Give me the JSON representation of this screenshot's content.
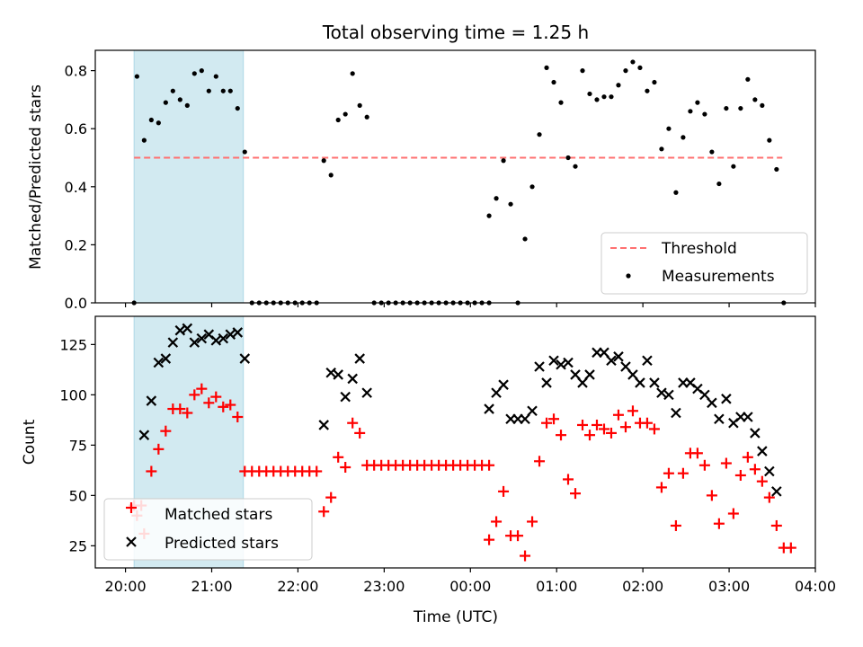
{
  "title": "Total observing time = 1.25 h",
  "colors": {
    "shade": "#add8e6",
    "threshold": "#ff7070",
    "matched": "#ff0000",
    "predicted": "#000000"
  },
  "chart_data": [
    {
      "type": "scatter",
      "panel": "top",
      "title": "Total observing time = 1.25 h",
      "xlabel": "",
      "ylabel": "Matched/Predicted stars",
      "xlim": [
        "19:39",
        "04:00"
      ],
      "ylim": [
        0,
        0.87
      ],
      "yticks": [
        0.0,
        0.2,
        0.4,
        0.6,
        0.8
      ],
      "yticklabels": [
        "0.0",
        "0.2",
        "0.4",
        "0.6",
        "0.8"
      ],
      "shaded_span": [
        "20:06",
        "21:22"
      ],
      "legend": "lower-right",
      "threshold": {
        "name": "Threshold",
        "value": 0.5,
        "x": [
          "20:06",
          "03:37"
        ]
      },
      "series": [
        {
          "name": "Measurements",
          "points": [
            [
              "20:06",
              0
            ],
            [
              "20:08",
              0.78
            ],
            [
              "20:13",
              0.56
            ],
            [
              "20:18",
              0.63
            ],
            [
              "20:23",
              0.62
            ],
            [
              "20:28",
              0.69
            ],
            [
              "20:33",
              0.73
            ],
            [
              "20:38",
              0.7
            ],
            [
              "20:43",
              0.68
            ],
            [
              "20:48",
              0.79
            ],
            [
              "20:53",
              0.8
            ],
            [
              "20:58",
              0.73
            ],
            [
              "21:03",
              0.78
            ],
            [
              "21:08",
              0.73
            ],
            [
              "21:13",
              0.73
            ],
            [
              "21:18",
              0.67
            ],
            [
              "21:23",
              0.52
            ],
            [
              "21:28",
              0
            ],
            [
              "21:33",
              0
            ],
            [
              "21:38",
              0
            ],
            [
              "21:43",
              0
            ],
            [
              "21:48",
              0
            ],
            [
              "21:53",
              0
            ],
            [
              "21:58",
              0
            ],
            [
              "22:03",
              0
            ],
            [
              "22:08",
              0
            ],
            [
              "22:13",
              0
            ],
            [
              "22:18",
              0.49
            ],
            [
              "22:23",
              0.44
            ],
            [
              "22:28",
              0.63
            ],
            [
              "22:33",
              0.65
            ],
            [
              "22:38",
              0.79
            ],
            [
              "22:43",
              0.68
            ],
            [
              "22:48",
              0.64
            ],
            [
              "22:53",
              0
            ],
            [
              "22:58",
              0
            ],
            [
              "23:03",
              0
            ],
            [
              "23:08",
              0
            ],
            [
              "23:13",
              0
            ],
            [
              "23:18",
              0
            ],
            [
              "23:23",
              0
            ],
            [
              "23:28",
              0
            ],
            [
              "23:33",
              0
            ],
            [
              "23:38",
              0
            ],
            [
              "23:43",
              0
            ],
            [
              "23:48",
              0
            ],
            [
              "23:53",
              0
            ],
            [
              "23:58",
              0
            ],
            [
              "00:03",
              0
            ],
            [
              "00:08",
              0
            ],
            [
              "00:13",
              0
            ],
            [
              "00:13",
              0.3
            ],
            [
              "00:18",
              0.36
            ],
            [
              "00:23",
              0.49
            ],
            [
              "00:28",
              0.34
            ],
            [
              "00:33",
              0
            ],
            [
              "00:38",
              0.22
            ],
            [
              "00:43",
              0.4
            ],
            [
              "00:48",
              0.58
            ],
            [
              "00:53",
              0.81
            ],
            [
              "00:58",
              0.76
            ],
            [
              "01:03",
              0.69
            ],
            [
              "01:08",
              0.5
            ],
            [
              "01:13",
              0.47
            ],
            [
              "01:18",
              0.8
            ],
            [
              "01:23",
              0.72
            ],
            [
              "01:28",
              0.7
            ],
            [
              "01:33",
              0.71
            ],
            [
              "01:38",
              0.71
            ],
            [
              "01:43",
              0.75
            ],
            [
              "01:48",
              0.8
            ],
            [
              "01:53",
              0.83
            ],
            [
              "01:58",
              0.81
            ],
            [
              "02:03",
              0.73
            ],
            [
              "02:08",
              0.76
            ],
            [
              "02:13",
              0.53
            ],
            [
              "02:18",
              0.6
            ],
            [
              "02:23",
              0.38
            ],
            [
              "02:28",
              0.57
            ],
            [
              "02:33",
              0.66
            ],
            [
              "02:38",
              0.69
            ],
            [
              "02:43",
              0.65
            ],
            [
              "02:48",
              0.52
            ],
            [
              "02:53",
              0.41
            ],
            [
              "02:58",
              0.67
            ],
            [
              "03:03",
              0.47
            ],
            [
              "03:08",
              0.67
            ],
            [
              "03:13",
              0.77
            ],
            [
              "03:18",
              0.7
            ],
            [
              "03:23",
              0.68
            ],
            [
              "03:28",
              0.56
            ],
            [
              "03:33",
              0.46
            ],
            [
              "03:38",
              0
            ]
          ]
        }
      ]
    },
    {
      "type": "scatter",
      "panel": "bottom",
      "xlabel": "Time (UTC)",
      "ylabel": "Count",
      "xlim": [
        "19:39",
        "04:00"
      ],
      "ylim": [
        14,
        139
      ],
      "yticks": [
        25,
        50,
        75,
        100,
        125
      ],
      "yticklabels": [
        "25",
        "50",
        "75",
        "100",
        "125"
      ],
      "xticks": [
        "20:00",
        "21:00",
        "22:00",
        "23:00",
        "00:00",
        "01:00",
        "02:00",
        "03:00",
        "04:00"
      ],
      "shaded_span": [
        "20:06",
        "21:22"
      ],
      "legend": "lower-left",
      "series": [
        {
          "name": "Matched stars",
          "points": [
            [
              "20:06",
              45
            ],
            [
              "20:08",
              40
            ],
            [
              "20:11",
              45
            ],
            [
              "20:13",
              31
            ],
            [
              "20:18",
              62
            ],
            [
              "20:23",
              73
            ],
            [
              "20:28",
              82
            ],
            [
              "20:33",
              93
            ],
            [
              "20:38",
              93
            ],
            [
              "20:43",
              91
            ],
            [
              "20:48",
              100
            ],
            [
              "20:53",
              103
            ],
            [
              "20:58",
              96
            ],
            [
              "21:03",
              99
            ],
            [
              "21:08",
              94
            ],
            [
              "21:13",
              95
            ],
            [
              "21:18",
              89
            ],
            [
              "21:23",
              62
            ],
            [
              "21:28",
              62
            ],
            [
              "21:33",
              62
            ],
            [
              "21:38",
              62
            ],
            [
              "21:43",
              62
            ],
            [
              "21:48",
              62
            ],
            [
              "21:53",
              62
            ],
            [
              "21:58",
              62
            ],
            [
              "22:03",
              62
            ],
            [
              "22:08",
              62
            ],
            [
              "22:13",
              62
            ],
            [
              "22:18",
              42
            ],
            [
              "22:23",
              49
            ],
            [
              "22:28",
              69
            ],
            [
              "22:33",
              64
            ],
            [
              "22:38",
              86
            ],
            [
              "22:43",
              81
            ],
            [
              "22:48",
              65
            ],
            [
              "22:53",
              65
            ],
            [
              "22:58",
              65
            ],
            [
              "23:03",
              65
            ],
            [
              "23:08",
              65
            ],
            [
              "23:13",
              65
            ],
            [
              "23:18",
              65
            ],
            [
              "23:23",
              65
            ],
            [
              "23:28",
              65
            ],
            [
              "23:33",
              65
            ],
            [
              "23:38",
              65
            ],
            [
              "23:43",
              65
            ],
            [
              "23:48",
              65
            ],
            [
              "23:53",
              65
            ],
            [
              "23:58",
              65
            ],
            [
              "00:03",
              65
            ],
            [
              "00:08",
              65
            ],
            [
              "00:13",
              65
            ],
            [
              "00:13",
              28
            ],
            [
              "00:18",
              37
            ],
            [
              "00:23",
              52
            ],
            [
              "00:28",
              30
            ],
            [
              "00:33",
              30
            ],
            [
              "00:38",
              20
            ],
            [
              "00:43",
              37
            ],
            [
              "00:48",
              67
            ],
            [
              "00:53",
              86
            ],
            [
              "00:58",
              88
            ],
            [
              "01:03",
              80
            ],
            [
              "01:08",
              58
            ],
            [
              "01:13",
              51
            ],
            [
              "01:18",
              85
            ],
            [
              "01:23",
              80
            ],
            [
              "01:28",
              85
            ],
            [
              "01:33",
              83
            ],
            [
              "01:38",
              81
            ],
            [
              "01:43",
              90
            ],
            [
              "01:48",
              84
            ],
            [
              "01:53",
              92
            ],
            [
              "01:58",
              86
            ],
            [
              "02:03",
              86
            ],
            [
              "02:08",
              83
            ],
            [
              "02:13",
              54
            ],
            [
              "02:18",
              61
            ],
            [
              "02:23",
              35
            ],
            [
              "02:28",
              61
            ],
            [
              "02:33",
              71
            ],
            [
              "02:38",
              71
            ],
            [
              "02:43",
              65
            ],
            [
              "02:48",
              50
            ],
            [
              "02:53",
              36
            ],
            [
              "02:58",
              66
            ],
            [
              "03:03",
              41
            ],
            [
              "03:08",
              60
            ],
            [
              "03:13",
              69
            ],
            [
              "03:18",
              63
            ],
            [
              "03:23",
              57
            ],
            [
              "03:28",
              49
            ],
            [
              "03:33",
              35
            ],
            [
              "03:38",
              24
            ],
            [
              "03:43",
              24
            ]
          ]
        },
        {
          "name": "Predicted stars",
          "points": [
            [
              "20:13",
              80
            ],
            [
              "20:18",
              97
            ],
            [
              "20:23",
              116
            ],
            [
              "20:28",
              118
            ],
            [
              "20:33",
              126
            ],
            [
              "20:38",
              132
            ],
            [
              "20:43",
              133
            ],
            [
              "20:48",
              126
            ],
            [
              "20:53",
              128
            ],
            [
              "20:58",
              130
            ],
            [
              "21:03",
              127
            ],
            [
              "21:08",
              128
            ],
            [
              "21:13",
              130
            ],
            [
              "21:18",
              131
            ],
            [
              "21:23",
              118
            ],
            [
              "22:18",
              85
            ],
            [
              "22:23",
              111
            ],
            [
              "22:28",
              110
            ],
            [
              "22:33",
              99
            ],
            [
              "22:38",
              108
            ],
            [
              "22:43",
              118
            ],
            [
              "22:48",
              101
            ],
            [
              "00:13",
              93
            ],
            [
              "00:18",
              101
            ],
            [
              "00:23",
              105
            ],
            [
              "00:28",
              88
            ],
            [
              "00:33",
              88
            ],
            [
              "00:38",
              88
            ],
            [
              "00:43",
              92
            ],
            [
              "00:48",
              114
            ],
            [
              "00:53",
              106
            ],
            [
              "00:58",
              117
            ],
            [
              "01:03",
              115
            ],
            [
              "01:08",
              116
            ],
            [
              "01:13",
              110
            ],
            [
              "01:18",
              106
            ],
            [
              "01:23",
              110
            ],
            [
              "01:28",
              121
            ],
            [
              "01:33",
              121
            ],
            [
              "01:38",
              117
            ],
            [
              "01:43",
              119
            ],
            [
              "01:48",
              114
            ],
            [
              "01:53",
              110
            ],
            [
              "01:58",
              106
            ],
            [
              "02:03",
              117
            ],
            [
              "02:08",
              106
            ],
            [
              "02:13",
              101
            ],
            [
              "02:18",
              100
            ],
            [
              "02:23",
              91
            ],
            [
              "02:28",
              106
            ],
            [
              "02:33",
              106
            ],
            [
              "02:38",
              103
            ],
            [
              "02:43",
              100
            ],
            [
              "02:48",
              96
            ],
            [
              "02:53",
              88
            ],
            [
              "02:58",
              98
            ],
            [
              "03:03",
              86
            ],
            [
              "03:08",
              89
            ],
            [
              "03:13",
              89
            ],
            [
              "03:18",
              81
            ],
            [
              "03:23",
              72
            ],
            [
              "03:28",
              62
            ],
            [
              "03:33",
              52
            ]
          ]
        }
      ]
    }
  ]
}
